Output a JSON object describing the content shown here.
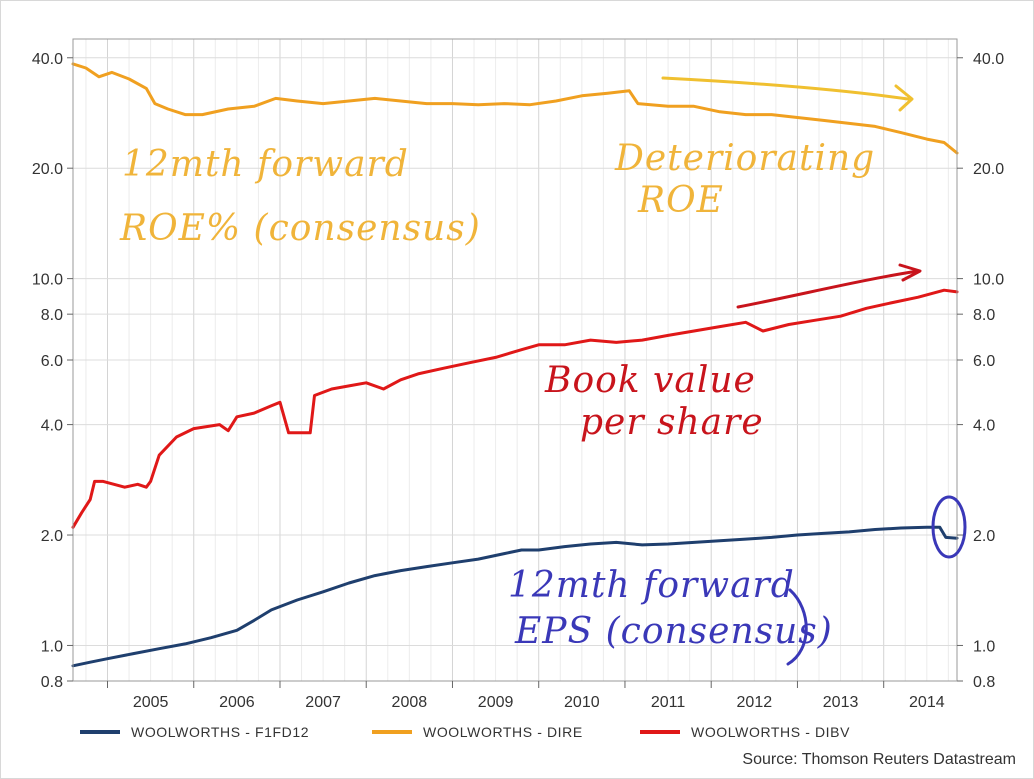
{
  "chart_data": {
    "type": "line",
    "yscale": "log",
    "ylim": [
      0.8,
      45
    ],
    "xlim": [
      2004.6,
      2014.85
    ],
    "grid": true,
    "y_ticks": [
      "40.0",
      "20.0",
      "10.0",
      "8.0",
      "6.0",
      "4.0",
      "2.0",
      "1.0",
      "0.8"
    ],
    "x_ticks": [
      "2005",
      "2006",
      "2007",
      "2008",
      "2009",
      "2010",
      "2011",
      "2012",
      "2013",
      "2014"
    ],
    "legend_position": "bottom",
    "series": [
      {
        "name": "WOOLWORTHS - F1FD12",
        "color": "#1f3f6e",
        "x": [
          2004.6,
          2004.8,
          2005.0,
          2005.3,
          2005.6,
          2005.9,
          2006.2,
          2006.5,
          2006.7,
          2006.9,
          2007.2,
          2007.5,
          2007.8,
          2008.1,
          2008.4,
          2008.7,
          2009.0,
          2009.3,
          2009.6,
          2009.8,
          2010.0,
          2010.3,
          2010.6,
          2010.9,
          2011.2,
          2011.5,
          2011.8,
          2012.1,
          2012.4,
          2012.7,
          2013.0,
          2013.3,
          2013.6,
          2013.9,
          2014.2,
          2014.5,
          2014.65,
          2014.72,
          2014.85
        ],
        "y": [
          0.88,
          0.9,
          0.92,
          0.95,
          0.98,
          1.01,
          1.05,
          1.1,
          1.17,
          1.25,
          1.33,
          1.4,
          1.48,
          1.55,
          1.6,
          1.64,
          1.68,
          1.72,
          1.78,
          1.82,
          1.82,
          1.86,
          1.89,
          1.91,
          1.88,
          1.89,
          1.91,
          1.93,
          1.95,
          1.97,
          2.0,
          2.02,
          2.04,
          2.07,
          2.09,
          2.1,
          2.1,
          1.97,
          1.96
        ]
      },
      {
        "name": "WOOLWORTHS - DIRE",
        "color": "#f0a020",
        "x": [
          2004.6,
          2004.75,
          2004.9,
          2005.05,
          2005.25,
          2005.45,
          2005.55,
          2005.7,
          2005.9,
          2006.1,
          2006.4,
          2006.7,
          2006.95,
          2007.2,
          2007.5,
          2007.8,
          2008.1,
          2008.4,
          2008.7,
          2009.0,
          2009.3,
          2009.6,
          2009.9,
          2010.2,
          2010.5,
          2010.8,
          2011.05,
          2011.15,
          2011.5,
          2011.8,
          2012.1,
          2012.4,
          2012.7,
          2013.0,
          2013.3,
          2013.6,
          2013.9,
          2014.2,
          2014.5,
          2014.7,
          2014.85
        ],
        "y": [
          38.5,
          37.5,
          35.5,
          36.5,
          35,
          33,
          30,
          29,
          28,
          28,
          29,
          29.5,
          31,
          30.5,
          30,
          30.5,
          31,
          30.5,
          30,
          30,
          29.8,
          30,
          29.8,
          30.5,
          31.5,
          32,
          32.5,
          30,
          29.5,
          29.5,
          28.5,
          28,
          28,
          27.5,
          27,
          26.5,
          26,
          25,
          24,
          23.5,
          22
        ]
      },
      {
        "name": "WOOLWORTHS - DIBV",
        "color": "#e01818",
        "x": [
          2004.6,
          2004.7,
          2004.8,
          2004.85,
          2004.95,
          2005.2,
          2005.35,
          2005.45,
          2005.5,
          2005.6,
          2005.8,
          2006.0,
          2006.3,
          2006.4,
          2006.5,
          2006.7,
          2006.9,
          2007.0,
          2007.1,
          2007.35,
          2007.4,
          2007.6,
          2007.8,
          2008.0,
          2008.2,
          2008.4,
          2008.6,
          2008.9,
          2009.2,
          2009.5,
          2009.8,
          2010.0,
          2010.3,
          2010.6,
          2010.9,
          2011.2,
          2011.5,
          2011.8,
          2012.1,
          2012.4,
          2012.6,
          2012.9,
          2013.2,
          2013.5,
          2013.8,
          2014.1,
          2014.4,
          2014.7,
          2014.85
        ],
        "y": [
          2.1,
          2.3,
          2.5,
          2.8,
          2.8,
          2.7,
          2.75,
          2.7,
          2.8,
          3.3,
          3.7,
          3.9,
          4.0,
          3.85,
          4.2,
          4.3,
          4.5,
          4.6,
          3.8,
          3.8,
          4.8,
          5.0,
          5.1,
          5.2,
          5.0,
          5.3,
          5.5,
          5.7,
          5.9,
          6.1,
          6.4,
          6.6,
          6.6,
          6.8,
          6.7,
          6.8,
          7.0,
          7.2,
          7.4,
          7.6,
          7.2,
          7.5,
          7.7,
          7.9,
          8.3,
          8.6,
          8.9,
          9.3,
          9.2
        ]
      }
    ],
    "source": "Source: Thomson Reuters Datastream",
    "annotations": {
      "roe_label": [
        "12mth forward",
        "ROE% (consensus)"
      ],
      "roe_trend": [
        "Deteriorating",
        "ROE"
      ],
      "bv_label": [
        "Book value",
        "per share"
      ],
      "eps_label": [
        "12mth forward",
        "EPS (consensus)"
      ]
    }
  }
}
